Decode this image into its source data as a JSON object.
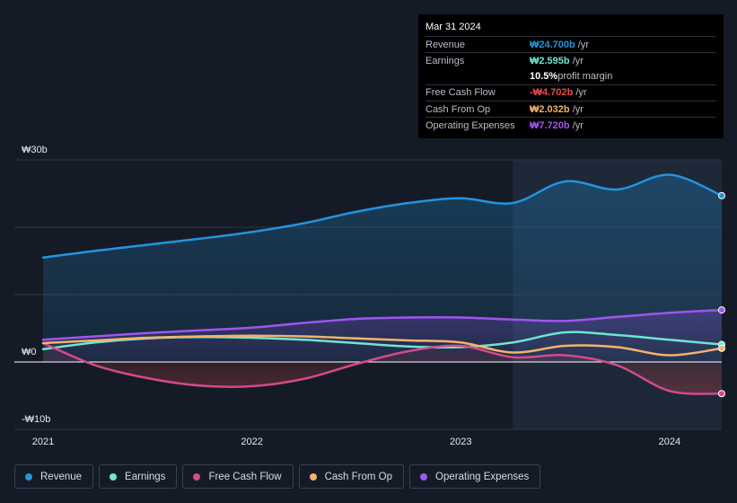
{
  "tooltip": {
    "date": "Mar 31 2024",
    "rows": [
      {
        "label": "Revenue",
        "value": "₩24.700b",
        "unit": " /yr",
        "color": "#2394df"
      },
      {
        "label": "Earnings",
        "value": "₩2.595b",
        "unit": " /yr",
        "color": "#6ee5d3"
      },
      {
        "label": "Free Cash Flow",
        "value": "-₩4.702b",
        "unit": " /yr",
        "color": "#e64b4b"
      },
      {
        "label": "Cash From Op",
        "value": "₩2.032b",
        "unit": " /yr",
        "color": "#f2b36b"
      },
      {
        "label": "Operating Expenses",
        "value": "₩7.720b",
        "unit": " /yr",
        "color": "#a055f0"
      }
    ],
    "margin_value": "10.5%",
    "margin_label": " profit margin"
  },
  "legend": [
    {
      "label": "Revenue",
      "color": "#2394df"
    },
    {
      "label": "Earnings",
      "color": "#6ee5d3"
    },
    {
      "label": "Free Cash Flow",
      "color": "#d44a8a"
    },
    {
      "label": "Cash From Op",
      "color": "#f2b36b"
    },
    {
      "label": "Operating Expenses",
      "color": "#a055f0"
    }
  ],
  "chart_data": {
    "type": "line",
    "title": "",
    "xlabel": "",
    "ylabel": "",
    "ylim": [
      -10,
      30
    ],
    "xlim": [
      2021.0,
      2024.25
    ],
    "y_tick_labels": [
      "₩30b",
      "₩0",
      "-₩10b"
    ],
    "y_tick_values": [
      30,
      0,
      -10
    ],
    "x_tick_labels": [
      "2021",
      "2022",
      "2023",
      "2024"
    ],
    "x_tick_values": [
      2021,
      2022,
      2023,
      2024
    ],
    "highlight_start": 2023.25,
    "series": [
      {
        "name": "Revenue",
        "color": "#2394df",
        "fill": true,
        "x": [
          2021.0,
          2021.25,
          2021.5,
          2021.75,
          2022.0,
          2022.25,
          2022.5,
          2022.75,
          2023.0,
          2023.25,
          2023.5,
          2023.75,
          2024.0,
          2024.25
        ],
        "y": [
          15.5,
          16.5,
          17.4,
          18.3,
          19.3,
          20.6,
          22.3,
          23.6,
          24.3,
          23.6,
          26.8,
          25.6,
          27.8,
          24.7
        ]
      },
      {
        "name": "Earnings",
        "color": "#6ee5d3",
        "fill": false,
        "x": [
          2021.0,
          2021.25,
          2021.5,
          2021.75,
          2022.0,
          2022.25,
          2022.5,
          2022.75,
          2023.0,
          2023.25,
          2023.5,
          2023.75,
          2024.0,
          2024.25
        ],
        "y": [
          1.9,
          2.9,
          3.5,
          3.7,
          3.6,
          3.3,
          2.8,
          2.3,
          2.2,
          2.9,
          4.4,
          4.0,
          3.3,
          2.595
        ]
      },
      {
        "name": "Free Cash Flow",
        "color": "#d44a8a",
        "fill": true,
        "x": [
          2021.0,
          2021.25,
          2021.5,
          2021.75,
          2022.0,
          2022.25,
          2022.5,
          2022.75,
          2023.0,
          2023.25,
          2023.5,
          2023.75,
          2024.0,
          2024.25
        ],
        "y": [
          2.8,
          -0.5,
          -2.4,
          -3.5,
          -3.6,
          -2.5,
          -0.3,
          1.6,
          2.4,
          0.7,
          1.0,
          -0.5,
          -4.3,
          -4.702
        ]
      },
      {
        "name": "Cash From Op",
        "color": "#f2b36b",
        "fill": false,
        "x": [
          2021.0,
          2021.25,
          2021.5,
          2021.75,
          2022.0,
          2022.25,
          2022.5,
          2022.75,
          2023.0,
          2023.25,
          2023.5,
          2023.75,
          2024.0,
          2024.25
        ],
        "y": [
          2.8,
          3.2,
          3.6,
          3.8,
          3.9,
          3.8,
          3.5,
          3.2,
          2.9,
          1.4,
          2.4,
          2.2,
          1.0,
          2.032
        ]
      },
      {
        "name": "Operating Expenses",
        "color": "#a055f0",
        "fill": true,
        "x": [
          2021.0,
          2021.25,
          2021.5,
          2021.75,
          2022.0,
          2022.25,
          2022.5,
          2022.75,
          2023.0,
          2023.25,
          2023.5,
          2023.75,
          2024.0,
          2024.25
        ],
        "y": [
          3.3,
          3.8,
          4.3,
          4.7,
          5.1,
          5.8,
          6.4,
          6.6,
          6.6,
          6.3,
          6.1,
          6.7,
          7.3,
          7.72
        ]
      }
    ]
  }
}
